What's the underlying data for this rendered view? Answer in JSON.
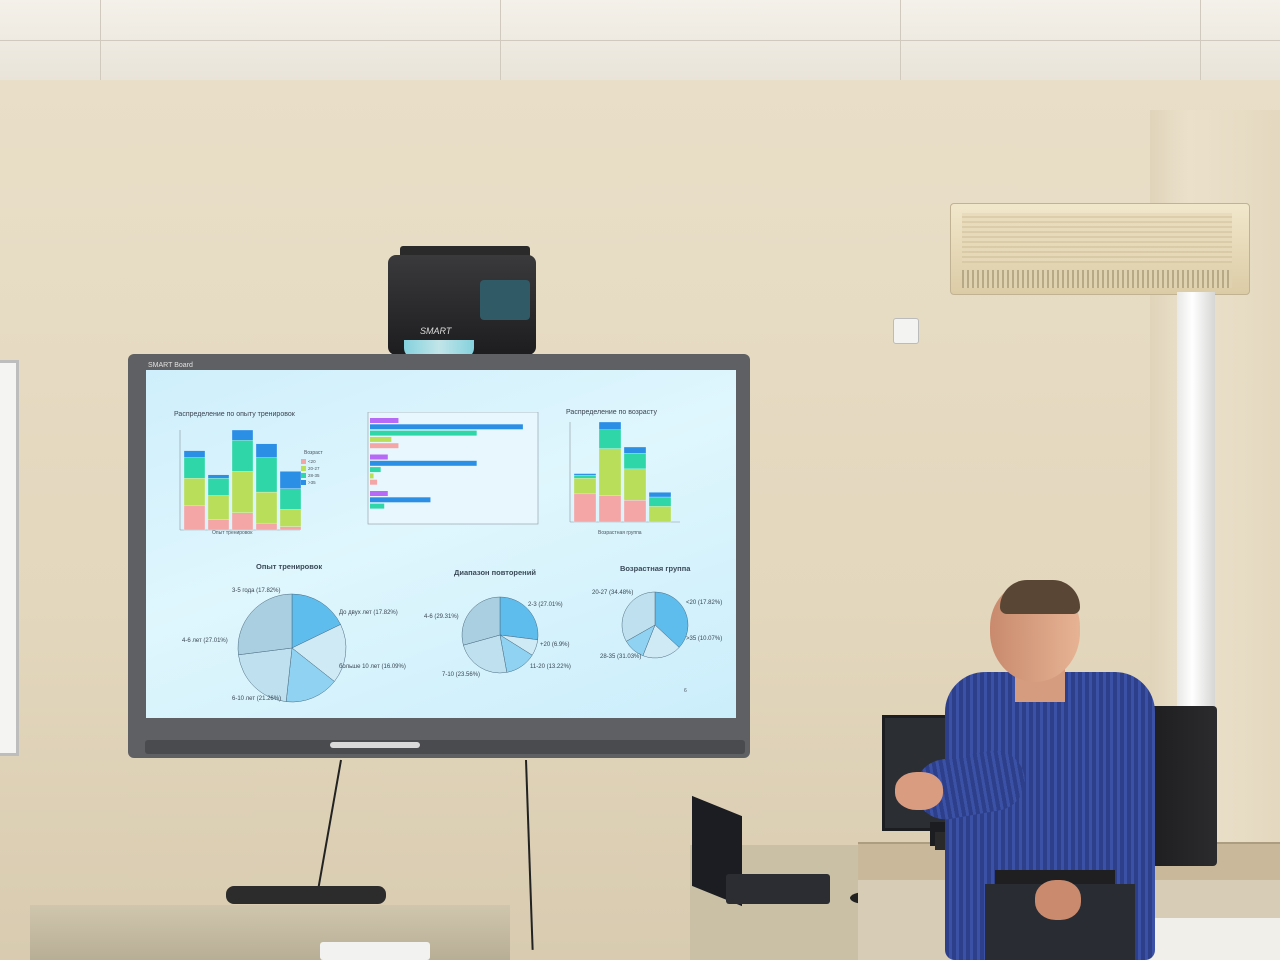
{
  "colors": {
    "wall": "#e6dcc6",
    "screen_bg": "#d6f3fc",
    "series_pink": "#f4a6a6",
    "series_yellowgreen": "#b8de5a",
    "series_teal": "#2fd6a8",
    "series_blue": "#2b8fe6",
    "series_purple": "#b76af5",
    "pie_fill": "#bfe7f7",
    "pie_fill_dark": "#56b7ea",
    "shirt": "#3a51a6"
  },
  "devices": {
    "projector_logo": "SMART",
    "board_brand": "SMART Board"
  },
  "slide": {
    "chart1_title": "Распределение по опыту тренировок",
    "chart1_xlabel": "Опыт тренировок",
    "chart1_legend_title": "Возраст",
    "chart1_legend": [
      "<20",
      "20-27",
      "28-35",
      ">35"
    ],
    "chart3_title": "Распределение по возрасту",
    "chart3_xlabel": "Возрастная группа",
    "pie1_title": "Опыт тренировок",
    "pie1_labels": [
      "3-5 года (17.82%)",
      "До двух лет (17.82%)",
      "больше 10 лет (16.09%)",
      "6-10 лет (21.26%)",
      "4-6 лет (27.01%)"
    ],
    "pie2_title": "Диапазон повторений",
    "pie2_labels": [
      "2-3 (27.01%)",
      "4-6 (29.31%)",
      "+20 (6.9%)",
      "11-20 (13.22%)",
      "7-10 (23.56%)"
    ],
    "pie3_title": "Возрастная группа",
    "pie3_labels": [
      "20-27 (34.48%)",
      "<20 (17.82%)",
      ">35 (10.07%)",
      "28-35 (31.03%)"
    ],
    "page_number": "6"
  },
  "chart_data": [
    {
      "type": "bar",
      "title": "Распределение по опыту тренировок",
      "xlabel": "Опыт тренировок",
      "categories": [
        "1",
        "2",
        "3",
        "4",
        "5"
      ],
      "series": [
        {
          "name": "<20",
          "values": [
            7,
            3,
            5,
            2,
            1
          ]
        },
        {
          "name": "20-27",
          "values": [
            8,
            7,
            12,
            9,
            5
          ]
        },
        {
          "name": "28-35",
          "values": [
            6,
            5,
            9,
            10,
            6
          ]
        },
        {
          "name": ">35",
          "values": [
            2,
            1,
            3,
            4,
            5
          ]
        }
      ]
    },
    {
      "type": "bar",
      "title": "",
      "orientation": "horizontal",
      "categories": [
        "1",
        "2",
        "3"
      ],
      "series": [
        {
          "name": "1",
          "values": [
            8,
            5,
            5
          ]
        },
        {
          "name": "2",
          "values": [
            43,
            30,
            17
          ]
        },
        {
          "name": "3",
          "values": [
            30,
            3,
            4
          ]
        },
        {
          "name": "4",
          "values": [
            6,
            1,
            0
          ]
        },
        {
          "name": "5",
          "values": [
            8,
            2,
            0
          ]
        }
      ]
    },
    {
      "type": "bar",
      "title": "Распределение по возрасту",
      "xlabel": "Возрастная группа",
      "categories": [
        "1",
        "2",
        "3",
        "4"
      ],
      "series": [
        {
          "name": "1",
          "values": [
            18,
            17,
            14,
            0
          ]
        },
        {
          "name": "2",
          "values": [
            10,
            30,
            20,
            10
          ]
        },
        {
          "name": "3",
          "values": [
            2,
            12,
            10,
            6
          ]
        },
        {
          "name": "4",
          "values": [
            1,
            5,
            4,
            3
          ]
        }
      ]
    },
    {
      "type": "pie",
      "title": "Опыт тренировок",
      "labels": [
        "3-5 года",
        "До двух лет",
        "больше 10 лет",
        "6-10 лет",
        "4-6 лет"
      ],
      "values": [
        17.82,
        17.82,
        16.09,
        21.26,
        27.01
      ]
    },
    {
      "type": "pie",
      "title": "Диапазон повторений",
      "labels": [
        "2-3",
        "+20",
        "11-20",
        "7-10",
        "4-6"
      ],
      "values": [
        27.01,
        6.9,
        13.22,
        23.56,
        29.31
      ]
    },
    {
      "type": "pie",
      "title": "Возрастная группа",
      "labels": [
        "20-27",
        "<20",
        ">35",
        "28-35"
      ],
      "values": [
        34.48,
        17.82,
        10.07,
        31.03
      ]
    }
  ]
}
